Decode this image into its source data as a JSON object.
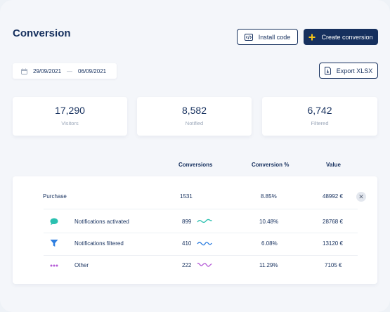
{
  "page": {
    "title": "Conversion"
  },
  "header": {
    "install_label": "Install code",
    "create_label": "Create conversion",
    "export_label": "Export XLSX"
  },
  "date_range": {
    "start": "29/09/2021",
    "separator": "—",
    "end": "06/09/2021"
  },
  "stats": [
    {
      "value": "17,290",
      "label": "Visitors"
    },
    {
      "value": "8,582",
      "label": "Notified"
    },
    {
      "value": "6,742",
      "label": "Filtered"
    }
  ],
  "table": {
    "headers": {
      "conversions": "Conversions",
      "percent": "Conversion %",
      "value": "Value"
    },
    "main_row": {
      "name": "Purchase",
      "conversions": "1531",
      "percent": "8.85%",
      "value": "48992 €"
    },
    "sub_rows": [
      {
        "name": "Notifications activated",
        "conversions": "899",
        "percent": "10.48%",
        "value": "28768 €",
        "icon": "chat-bubble-icon",
        "color": "#2bc0b0"
      },
      {
        "name": "Notifications filtered",
        "conversions": "410",
        "percent": "6.08%",
        "value": "13120 €",
        "icon": "filter-icon",
        "color": "#2f7fe0"
      },
      {
        "name": "Other",
        "conversions": "222",
        "percent": "11.29%",
        "value": "7105 €",
        "icon": "more-dots-icon",
        "color": "#b45ad6"
      }
    ]
  },
  "colors": {
    "primary": "#16305e",
    "background": "#f4f6fa",
    "muted": "#9aa6b8"
  }
}
